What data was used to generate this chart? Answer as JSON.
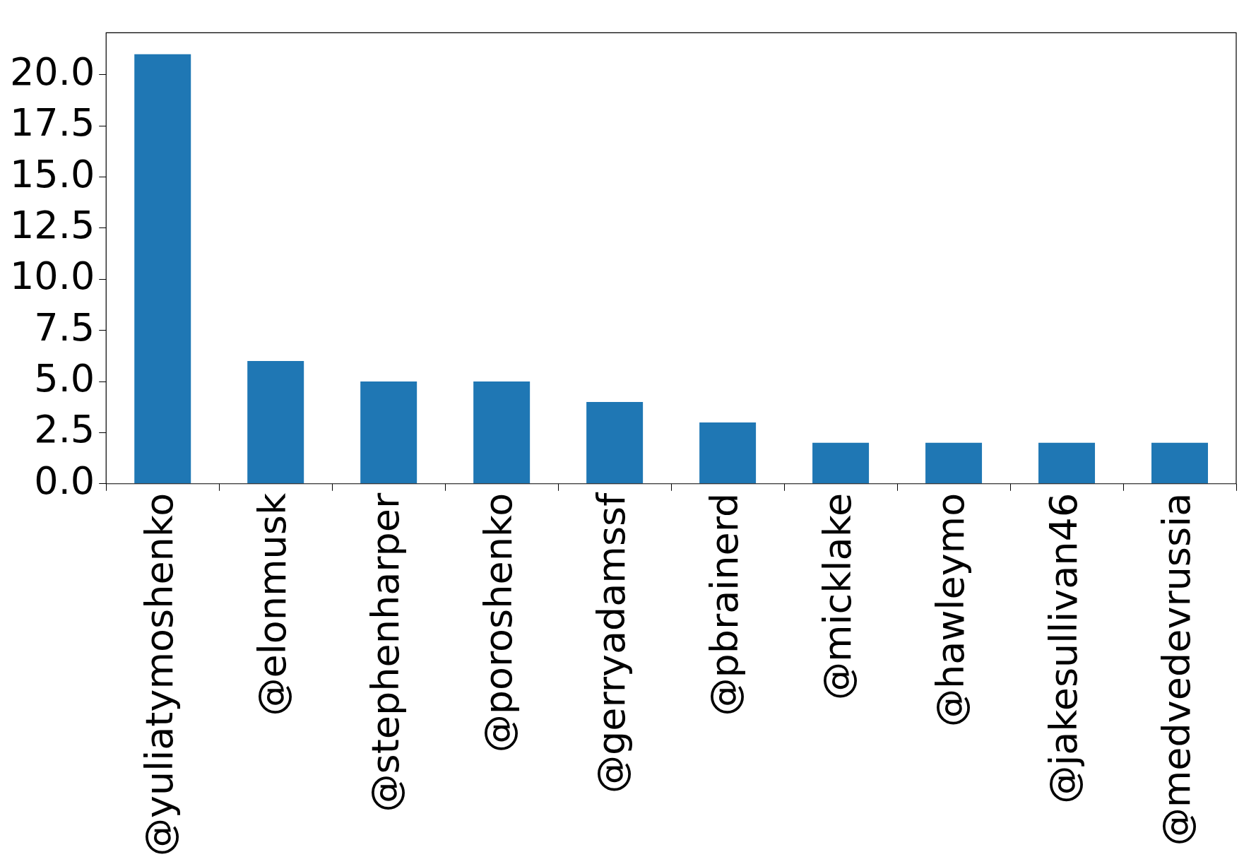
{
  "chart_data": {
    "type": "bar",
    "categories": [
      "@yuliatymoshenko",
      "@elonmusk",
      "@stephenharper",
      "@poroshenko",
      "@gerryadamssf",
      "@pbrainerd",
      "@micklake",
      "@hawleymo",
      "@jakesullivan46",
      "@medvedevrussia"
    ],
    "values": [
      21,
      6,
      5,
      5,
      4,
      3,
      2,
      2,
      2,
      2
    ],
    "color": "#1f77b4",
    "ylim": [
      0,
      22.05
    ],
    "yticks": [
      {
        "value": 0,
        "label": "0.0"
      },
      {
        "value": 2.5,
        "label": "2.5"
      },
      {
        "value": 5,
        "label": "5.0"
      },
      {
        "value": 7.5,
        "label": "7.5"
      },
      {
        "value": 10,
        "label": "10.0"
      },
      {
        "value": 12.5,
        "label": "12.5"
      },
      {
        "value": 15,
        "label": "15.0"
      },
      {
        "value": 17.5,
        "label": "17.5"
      },
      {
        "value": 20,
        "label": "20.0"
      }
    ],
    "grid": false,
    "legend": false
  }
}
